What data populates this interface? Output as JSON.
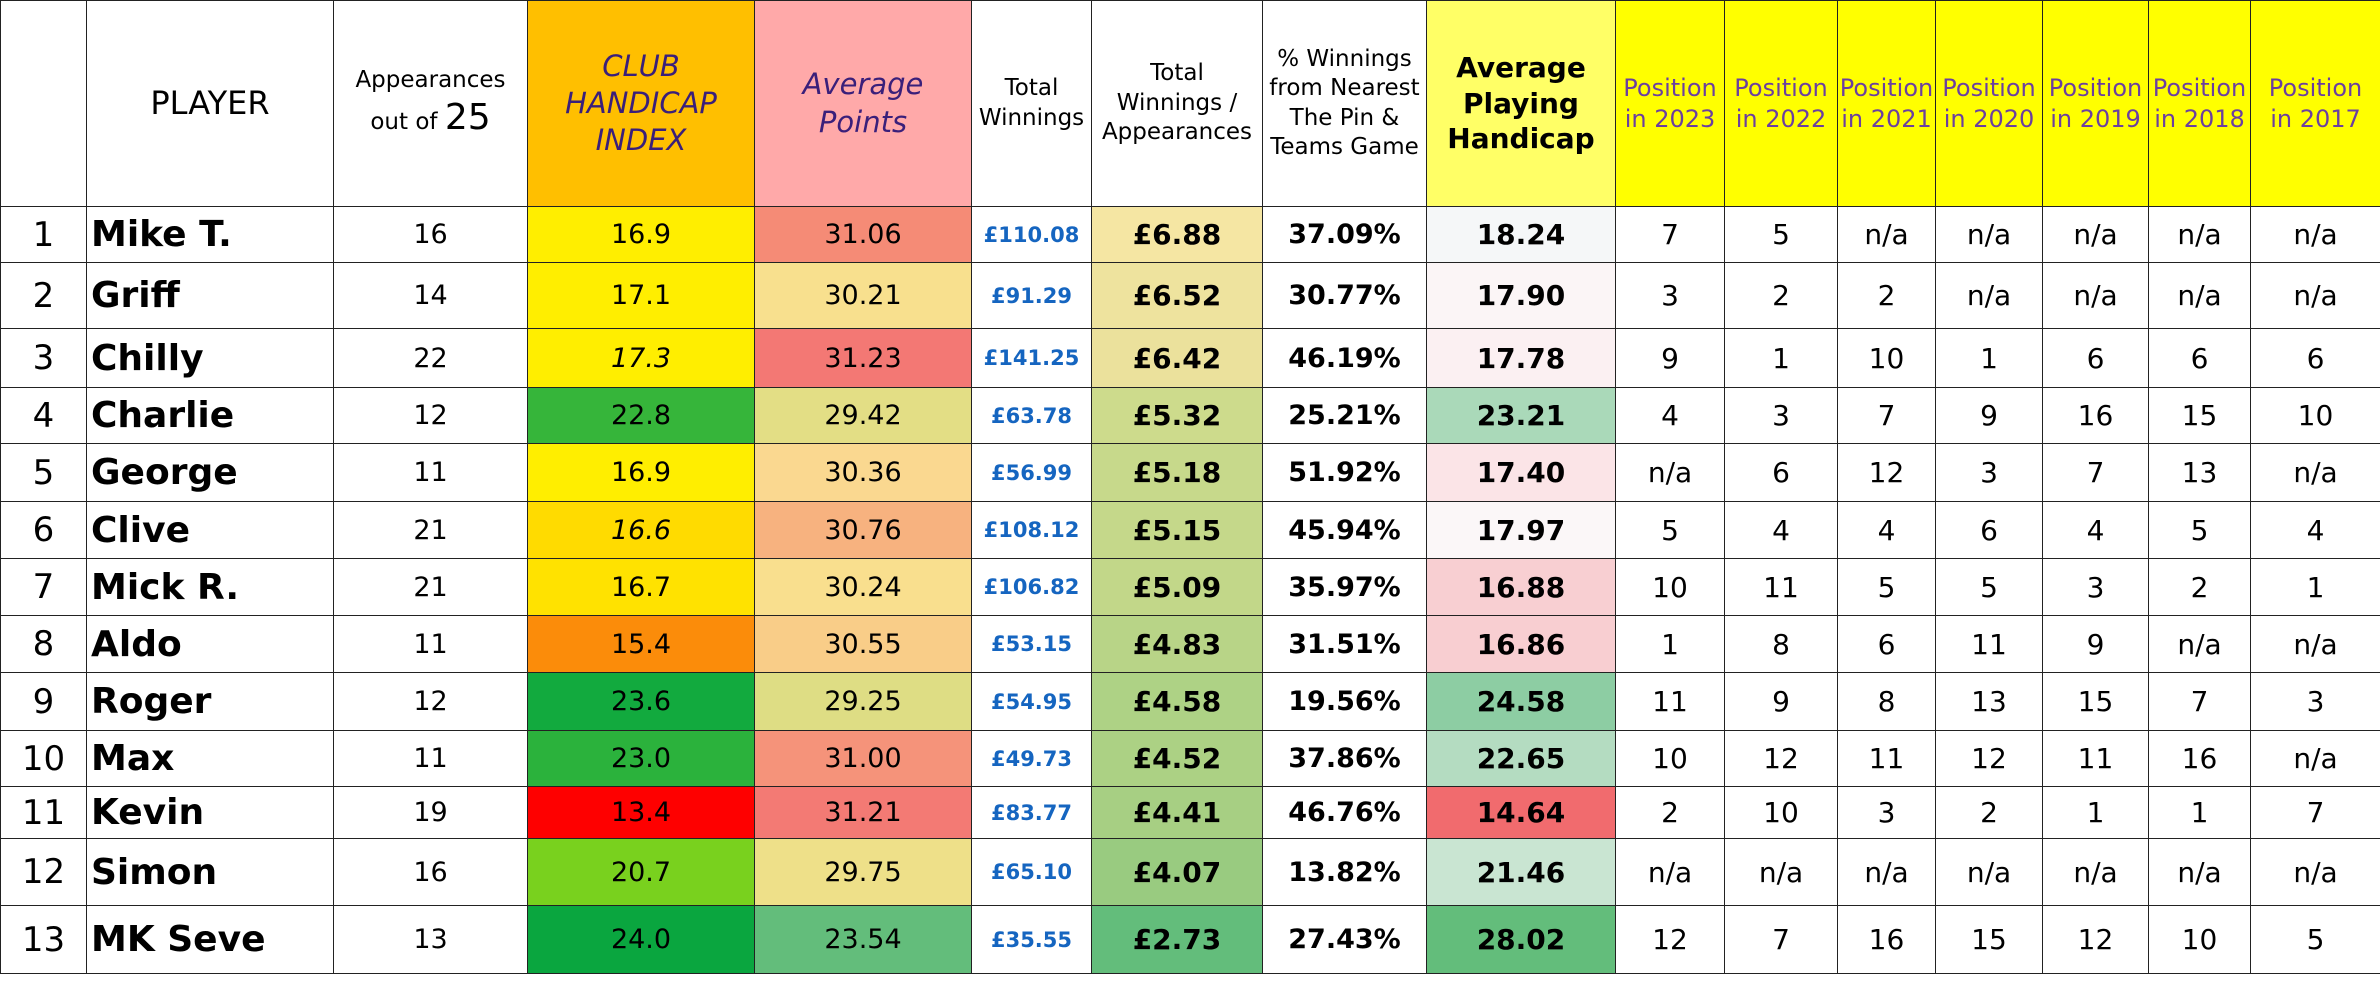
{
  "headers": {
    "rank": "",
    "player": "PLAYER",
    "appearances_line1": "Appearances",
    "appearances_line2": "out of",
    "appearances_num": "25",
    "club_handicap_line1": "CLUB",
    "club_handicap_line2": "HANDICAP",
    "club_handicap_line3": "INDEX",
    "avg_points": "Average Points",
    "total_winnings_line1": "Total",
    "total_winnings_line2": "Winnings",
    "tw_per_app_line1": "Total",
    "tw_per_app_line2": "Winnings /",
    "tw_per_app_line3": "Appearances",
    "pct_line1": "% Winnings",
    "pct_line2": "from Nearest",
    "pct_line3": "The Pin &",
    "pct_line4": "Teams Game",
    "avg_ph_line1": "Average",
    "avg_ph_line2": "Playing",
    "avg_ph_line3": "Handicap",
    "positions": [
      {
        "line1": "Position",
        "line2": "in 2023"
      },
      {
        "line1": "Position",
        "line2": "in 2022"
      },
      {
        "line1": "Position",
        "line2": "in 2021"
      },
      {
        "line1": "Position",
        "line2": "in 2020"
      },
      {
        "line1": "Position",
        "line2": "in 2019"
      },
      {
        "line1": "Position",
        "line2": "in 2018"
      },
      {
        "line1": "Position",
        "line2": "in 2017"
      }
    ]
  },
  "rows": [
    {
      "rank": "1",
      "player": "Mike T.",
      "appearances": "16",
      "handicap": "16.9",
      "avg_points": "31.06",
      "total_winnings": "£110.08",
      "tw_per_app": "£6.88",
      "pct": "37.09%",
      "avg_ph": "18.24",
      "pos": [
        "7",
        "5",
        "n/a",
        "n/a",
        "n/a",
        "n/a",
        "n/a"
      ],
      "colors": {
        "handicap": "#ffee00",
        "avg_points": "#f58b76",
        "tw_per_app": "#f5e6a3",
        "avg_ph": "#f5f7f8"
      }
    },
    {
      "rank": "2",
      "player": "Griff",
      "appearances": "14",
      "handicap": "17.1",
      "avg_points": "30.21",
      "total_winnings": "£91.29",
      "tw_per_app": "£6.52",
      "pct": "30.77%",
      "avg_ph": "17.90",
      "pos": [
        "3",
        "2",
        "2",
        "n/a",
        "n/a",
        "n/a",
        "n/a"
      ],
      "colors": {
        "handicap": "#ffee00",
        "avg_points": "#f8e08e",
        "tw_per_app": "#eee39e",
        "avg_ph": "#fbf5f6"
      }
    },
    {
      "rank": "3",
      "player": "Chilly",
      "appearances": "22",
      "handicap": "17.3",
      "avg_points": "31.23",
      "total_winnings": "£141.25",
      "tw_per_app": "£6.42",
      "pct": "46.19%",
      "avg_ph": "17.78",
      "pos": [
        "9",
        "1",
        "10",
        "1",
        "6",
        "6",
        "6"
      ],
      "colors": {
        "handicap": "#ffee00",
        "avg_points": "#f37874",
        "tw_per_app": "#ebe19c",
        "avg_ph": "#fbf0f2"
      }
    },
    {
      "rank": "4",
      "player": "Charlie",
      "appearances": "12",
      "handicap": "22.8",
      "avg_points": "29.42",
      "total_winnings": "£63.78",
      "tw_per_app": "£5.32",
      "pct": "25.21%",
      "avg_ph": "23.21",
      "pos": [
        "4",
        "3",
        "7",
        "9",
        "16",
        "15",
        "10"
      ],
      "colors": {
        "handicap": "#36b53a",
        "avg_points": "#e3de85",
        "tw_per_app": "#cddb8c",
        "avg_ph": "#aad9b9"
      }
    },
    {
      "rank": "5",
      "player": "George",
      "appearances": "11",
      "handicap": "16.9",
      "avg_points": "30.36",
      "total_winnings": "£56.99",
      "tw_per_app": "£5.18",
      "pct": "51.92%",
      "avg_ph": "17.40",
      "pos": [
        "n/a",
        "6",
        "12",
        "3",
        "7",
        "13",
        "n/a"
      ],
      "colors": {
        "handicap": "#ffee00",
        "avg_points": "#fad890",
        "tw_per_app": "#c7d98b",
        "avg_ph": "#fbe4e7"
      }
    },
    {
      "rank": "6",
      "player": "Clive",
      "appearances": "21",
      "handicap": "16.6",
      "avg_points": "30.76",
      "total_winnings": "£108.12",
      "tw_per_app": "£5.15",
      "pct": "45.94%",
      "avg_ph": "17.97",
      "pos": [
        "5",
        "4",
        "4",
        "6",
        "4",
        "5",
        "4"
      ],
      "colors": {
        "handicap": "#ffdb00",
        "avg_points": "#f7b27f",
        "tw_per_app": "#c5d88a",
        "avg_ph": "#fbf7f8"
      }
    },
    {
      "rank": "7",
      "player": "Mick R.",
      "appearances": "21",
      "handicap": "16.7",
      "avg_points": "30.24",
      "total_winnings": "£106.82",
      "tw_per_app": "£5.09",
      "pct": "35.97%",
      "avg_ph": "16.88",
      "pos": [
        "10",
        "11",
        "5",
        "5",
        "3",
        "2",
        "1"
      ],
      "colors": {
        "handicap": "#ffe200",
        "avg_points": "#f9df8e",
        "tw_per_app": "#c2d789",
        "avg_ph": "#f8cfd2"
      }
    },
    {
      "rank": "8",
      "player": "Aldo",
      "appearances": "11",
      "handicap": "15.4",
      "avg_points": "30.55",
      "total_winnings": "£53.15",
      "tw_per_app": "£4.83",
      "pct": "31.51%",
      "avg_ph": "16.86",
      "pos": [
        "1",
        "8",
        "6",
        "11",
        "9",
        "n/a",
        "n/a"
      ],
      "colors": {
        "handicap": "#fb8c0a",
        "avg_points": "#f9cd88",
        "tw_per_app": "#b8d487",
        "avg_ph": "#f8ced1"
      }
    },
    {
      "rank": "9",
      "player": "Roger",
      "appearances": "12",
      "handicap": "23.6",
      "avg_points": "29.25",
      "total_winnings": "£54.95",
      "tw_per_app": "£4.58",
      "pct": "19.56%",
      "avg_ph": "24.58",
      "pos": [
        "11",
        "9",
        "8",
        "13",
        "15",
        "7",
        "3"
      ],
      "colors": {
        "handicap": "#12aa3e",
        "avg_points": "#dedd84",
        "tw_per_app": "#aed285",
        "avg_ph": "#8dcda3"
      }
    },
    {
      "rank": "10",
      "player": "Max",
      "appearances": "11",
      "handicap": "23.0",
      "avg_points": "31.00",
      "total_winnings": "£49.73",
      "tw_per_app": "£4.52",
      "pct": "37.86%",
      "avg_ph": "22.65",
      "pos": [
        "10",
        "12",
        "11",
        "12",
        "11",
        "16",
        "n/a"
      ],
      "colors": {
        "handicap": "#2bb23c",
        "avg_points": "#f5937a",
        "tw_per_app": "#acd184",
        "avg_ph": "#b4dcc1"
      }
    },
    {
      "rank": "11",
      "player": "Kevin",
      "appearances": "19",
      "handicap": "13.4",
      "avg_points": "31.21",
      "total_winnings": "£83.77",
      "tw_per_app": "£4.41",
      "pct": "46.76%",
      "avg_ph": "14.64",
      "pos": [
        "2",
        "10",
        "3",
        "2",
        "1",
        "1",
        "7"
      ],
      "colors": {
        "handicap": "#fe0000",
        "avg_points": "#f37a74",
        "tw_per_app": "#a7cf83",
        "avg_ph": "#f16b6e"
      }
    },
    {
      "rank": "12",
      "player": "Simon",
      "appearances": "16",
      "handicap": "20.7",
      "avg_points": "29.75",
      "total_winnings": "£65.10",
      "tw_per_app": "£4.07",
      "pct": "13.82%",
      "avg_ph": "21.46",
      "pos": [
        "n/a",
        "n/a",
        "n/a",
        "n/a",
        "n/a",
        "n/a",
        "n/a"
      ],
      "colors": {
        "handicap": "#79d11e",
        "avg_points": "#eee089",
        "tw_per_app": "#99cb80",
        "avg_ph": "#c9e5d2"
      }
    },
    {
      "rank": "13",
      "player": "MK Seve",
      "appearances": "13",
      "handicap": "24.0",
      "avg_points": "23.54",
      "total_winnings": "£35.55",
      "tw_per_app": "£2.73",
      "pct": "27.43%",
      "avg_ph": "28.02",
      "pos": [
        "12",
        "7",
        "16",
        "15",
        "12",
        "10",
        "5"
      ],
      "colors": {
        "handicap": "#0aa63f",
        "avg_points": "#63bd7b",
        "tw_per_app": "#63bd7b",
        "avg_ph": "#63bd7b"
      }
    }
  ]
}
